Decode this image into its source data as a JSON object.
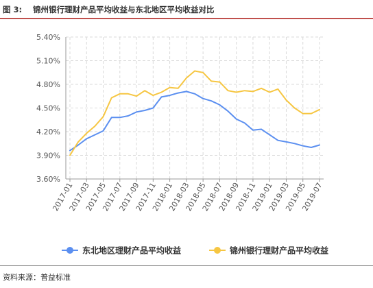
{
  "header": {
    "figure_label": "图 3:",
    "title": "锦州银行理财产品平均收益与东北地区平均收益对比"
  },
  "footer": {
    "source": "资料来源：普益标准"
  },
  "colors": {
    "northeast": "#5b8ff0",
    "jinzhou": "#f6c642",
    "grid": "#d9d9d9",
    "axis_text": "#555555"
  },
  "chart_data": {
    "type": "line",
    "title": "",
    "xlabel": "",
    "ylabel": "",
    "ylim": [
      3.6,
      5.4
    ],
    "yticks": [
      "3.60%",
      "3.90%",
      "4.20%",
      "4.50%",
      "4.80%",
      "5.10%",
      "5.40%"
    ],
    "ytick_values": [
      3.6,
      3.9,
      4.2,
      4.5,
      4.8,
      5.1,
      5.4
    ],
    "x": [
      "2017-01",
      "2017-02",
      "2017-03",
      "2017-04",
      "2017-05",
      "2017-06",
      "2017-07",
      "2017-08",
      "2017-09",
      "2017-10",
      "2017-11",
      "2017-12",
      "2018-01",
      "2018-02",
      "2018-03",
      "2018-04",
      "2018-05",
      "2018-06",
      "2018-07",
      "2018-08",
      "2018-09",
      "2018-10",
      "2018-11",
      "2018-12",
      "2019-01",
      "2019-02",
      "2019-03",
      "2019-04",
      "2019-05",
      "2019-06",
      "2019-07"
    ],
    "xtick_labels": [
      "2017-01",
      "2017-03",
      "2017-05",
      "2017-07",
      "2017-09",
      "2017-11",
      "2018-01",
      "2018-03",
      "2018-05",
      "2018-07",
      "2018-09",
      "2018-11",
      "2019-01",
      "2019-03",
      "2019-05",
      "2019-07"
    ],
    "grid": true,
    "legend_position": "bottom",
    "series": [
      {
        "name": "东北地区理财产品平均收益",
        "values": [
          3.96,
          4.03,
          4.11,
          4.16,
          4.21,
          4.38,
          4.38,
          4.4,
          4.45,
          4.47,
          4.5,
          4.64,
          4.66,
          4.69,
          4.71,
          4.68,
          4.62,
          4.59,
          4.54,
          4.46,
          4.36,
          4.31,
          4.22,
          4.23,
          4.16,
          4.09,
          4.07,
          4.05,
          4.02,
          4.0,
          4.03
        ]
      },
      {
        "name": "锦州银行理财产品平均收益",
        "values": [
          3.9,
          4.07,
          4.18,
          4.27,
          4.39,
          4.63,
          4.68,
          4.68,
          4.65,
          4.72,
          4.66,
          4.7,
          4.76,
          4.75,
          4.88,
          4.97,
          4.95,
          4.84,
          4.83,
          4.72,
          4.7,
          4.72,
          4.71,
          4.75,
          4.7,
          4.74,
          4.6,
          4.5,
          4.43,
          4.43,
          4.48
        ]
      }
    ]
  }
}
